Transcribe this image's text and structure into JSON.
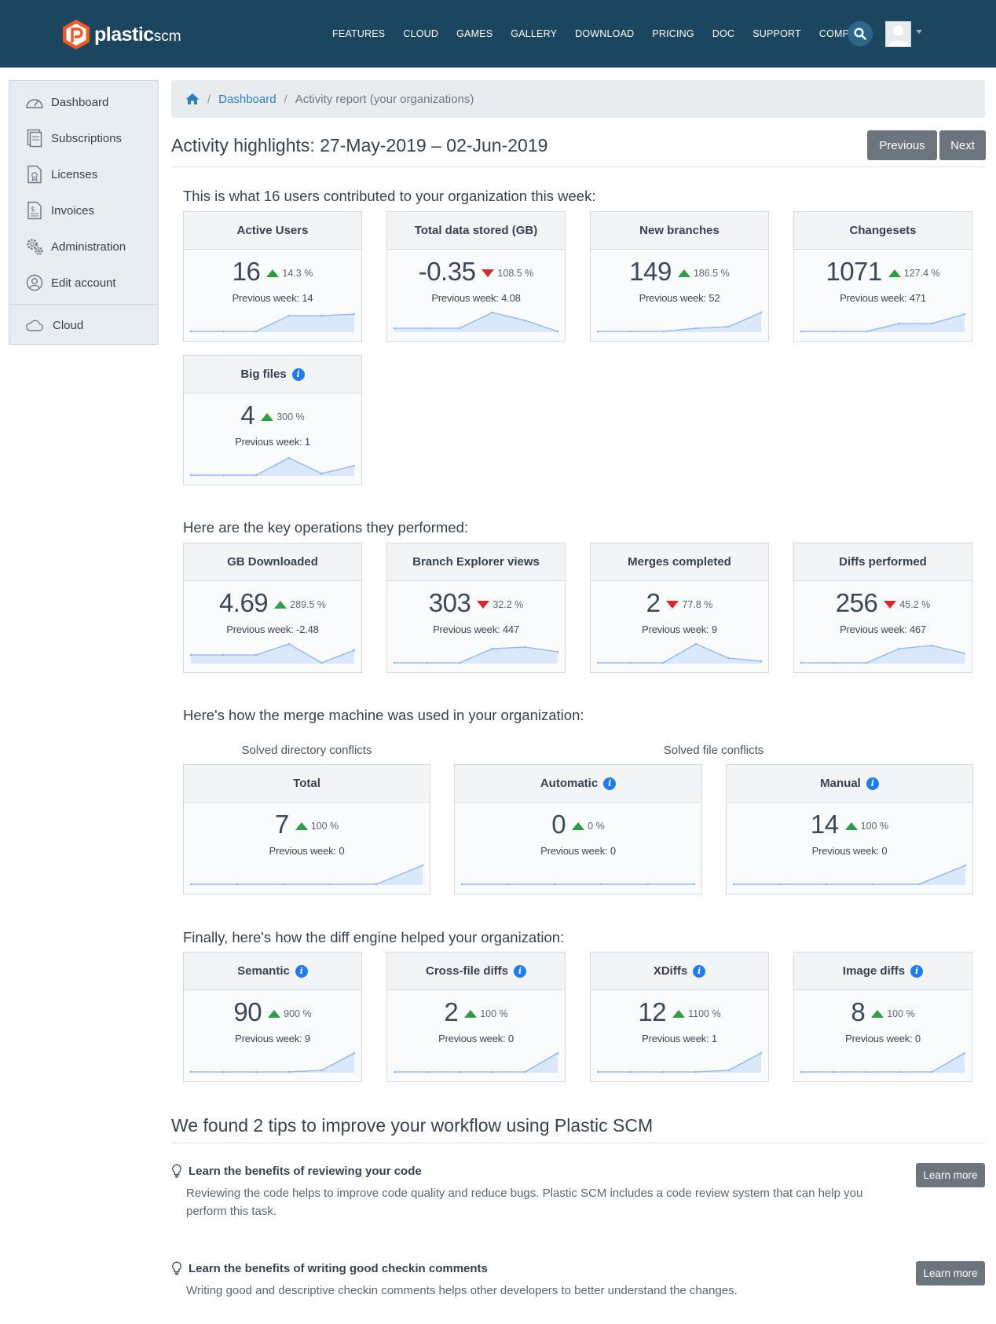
{
  "brand": {
    "name_bold": "plastic",
    "name_light": "scm",
    "color": "#f15a24"
  },
  "nav": {
    "links": [
      "FEATURES",
      "CLOUD",
      "GAMES",
      "GALLERY",
      "DOWNLOAD",
      "PRICING",
      "DOC",
      "SUPPORT",
      "COMPANY"
    ],
    "search_icon": "search-icon",
    "avatar_icon": "user-avatar"
  },
  "sidebar": {
    "items": [
      {
        "label": "Dashboard",
        "icon": "dashboard-gauge-icon"
      },
      {
        "label": "Subscriptions",
        "icon": "subscriptions-icon"
      },
      {
        "label": "Licenses",
        "icon": "license-icon"
      },
      {
        "label": "Invoices",
        "icon": "invoice-icon"
      },
      {
        "label": "Administration",
        "icon": "gears-icon"
      },
      {
        "label": "Edit account",
        "icon": "user-circle-icon"
      },
      {
        "label": "Cloud",
        "icon": "cloud-icon"
      }
    ]
  },
  "breadcrumb": {
    "home_icon": "home-icon",
    "link": "Dashboard",
    "current": "Activity report (your organizations)"
  },
  "header": {
    "title": "Activity highlights: 27-May-2019 – 02-Jun-2019",
    "previous_label": "Previous",
    "next_label": "Next"
  },
  "sections": {
    "contrib": "This is what 16 users contributed to your organization this week:",
    "ops": "Here are the key operations they performed:",
    "merge": "Here's how the merge machine was used in your organization:",
    "merge_dir_caption": "Solved directory conflicts",
    "merge_file_caption": "Solved file conflicts",
    "diff": "Finally, here's how the diff engine helped your organization:"
  },
  "cards": {
    "active_users": {
      "title": "Active Users",
      "value": "16",
      "trend": "up",
      "pct": "14.3 %",
      "prev": "Previous week: 14",
      "spark": [
        0,
        0,
        0,
        1,
        1,
        1.1
      ]
    },
    "data_stored": {
      "title": "Total data stored (GB)",
      "value": "-0.35",
      "trend": "down",
      "pct": "108.5 %",
      "prev": "Previous week: 4.08",
      "spark": [
        0.2,
        0.2,
        0.2,
        1.2,
        0.7,
        0
      ]
    },
    "new_branches": {
      "title": "New branches",
      "value": "149",
      "trend": "up",
      "pct": "186.5 %",
      "prev": "Previous week: 52",
      "spark": [
        0,
        0,
        0,
        0.2,
        0.3,
        1.2
      ]
    },
    "changesets": {
      "title": "Changesets",
      "value": "1071",
      "trend": "up",
      "pct": "127.4 %",
      "prev": "Previous week: 471",
      "spark": [
        0,
        0,
        0,
        0.5,
        0.5,
        1.1
      ]
    },
    "big_files": {
      "title": "Big files",
      "info": true,
      "value": "4",
      "trend": "up",
      "pct": "300 %",
      "prev": "Previous week: 1",
      "spark": [
        0,
        0,
        0,
        1.1,
        0.1,
        0.6
      ]
    },
    "gb_downloaded": {
      "title": "GB Downloaded",
      "value": "4.69",
      "trend": "up",
      "pct": "289.5 %",
      "prev": "Previous week: -2.48",
      "spark": [
        0.5,
        0.5,
        0.5,
        1.2,
        0,
        0.8
      ]
    },
    "branch_explorer": {
      "title": "Branch Explorer views",
      "value": "303",
      "trend": "down",
      "pct": "32.2 %",
      "prev": "Previous week: 447",
      "spark": [
        0,
        0,
        0,
        0.9,
        1,
        0.7
      ]
    },
    "merges": {
      "title": "Merges completed",
      "value": "2",
      "trend": "down",
      "pct": "77.8 %",
      "prev": "Previous week: 9",
      "spark": [
        0,
        0,
        0,
        1.2,
        0.3,
        0.1
      ]
    },
    "diffs": {
      "title": "Diffs performed",
      "value": "256",
      "trend": "down",
      "pct": "45.2 %",
      "prev": "Previous week: 467",
      "spark": [
        0,
        0,
        0,
        0.9,
        1.1,
        0.6
      ]
    },
    "merge_total": {
      "title": "Total",
      "value": "7",
      "trend": "up",
      "pct": "100 %",
      "prev": "Previous week: 0",
      "spark": [
        0,
        0,
        0,
        0,
        0,
        1.2
      ]
    },
    "merge_auto": {
      "title": "Automatic",
      "info": true,
      "value": "0",
      "trend": "up",
      "pct": "0 %",
      "prev": "Previous week: 0",
      "spark": [
        0,
        0,
        0,
        0,
        0,
        0
      ]
    },
    "merge_manual": {
      "title": "Manual",
      "info": true,
      "value": "14",
      "trend": "up",
      "pct": "100 %",
      "prev": "Previous week: 0",
      "spark": [
        0,
        0,
        0,
        0,
        0,
        1.2
      ]
    },
    "semantic": {
      "title": "Semantic",
      "info": true,
      "value": "90",
      "trend": "up",
      "pct": "900 %",
      "prev": "Previous week: 9",
      "spark": [
        0,
        0,
        0,
        0,
        0.1,
        1.2
      ]
    },
    "crossfile": {
      "title": "Cross-file diffs",
      "info": true,
      "value": "2",
      "trend": "up",
      "pct": "100 %",
      "prev": "Previous week: 0",
      "spark": [
        0,
        0,
        0,
        0,
        0,
        1.2
      ]
    },
    "xdiffs": {
      "title": "XDiffs",
      "info": true,
      "value": "12",
      "trend": "up",
      "pct": "1100 %",
      "prev": "Previous week: 1",
      "spark": [
        0,
        0,
        0,
        0,
        0.1,
        1.2
      ]
    },
    "image_diffs": {
      "title": "Image diffs",
      "info": true,
      "value": "8",
      "trend": "up",
      "pct": "100 %",
      "prev": "Previous week: 0",
      "spark": [
        0,
        0,
        0,
        0,
        0,
        1.2
      ]
    }
  },
  "tips": {
    "title": "We found 2 tips to improve your workflow using Plastic SCM",
    "items": [
      {
        "title": "Learn the benefits of reviewing your code",
        "text": "Reviewing the code helps to improve code quality and reduce bugs. Plastic SCM includes a code review system that can help you perform this task.",
        "button": "Learn more"
      },
      {
        "title": "Learn the benefits of writing good checkin comments",
        "text": "Writing good and descriptive checkin comments helps other developers to better understand the changes.",
        "button": "Learn more"
      }
    ]
  }
}
